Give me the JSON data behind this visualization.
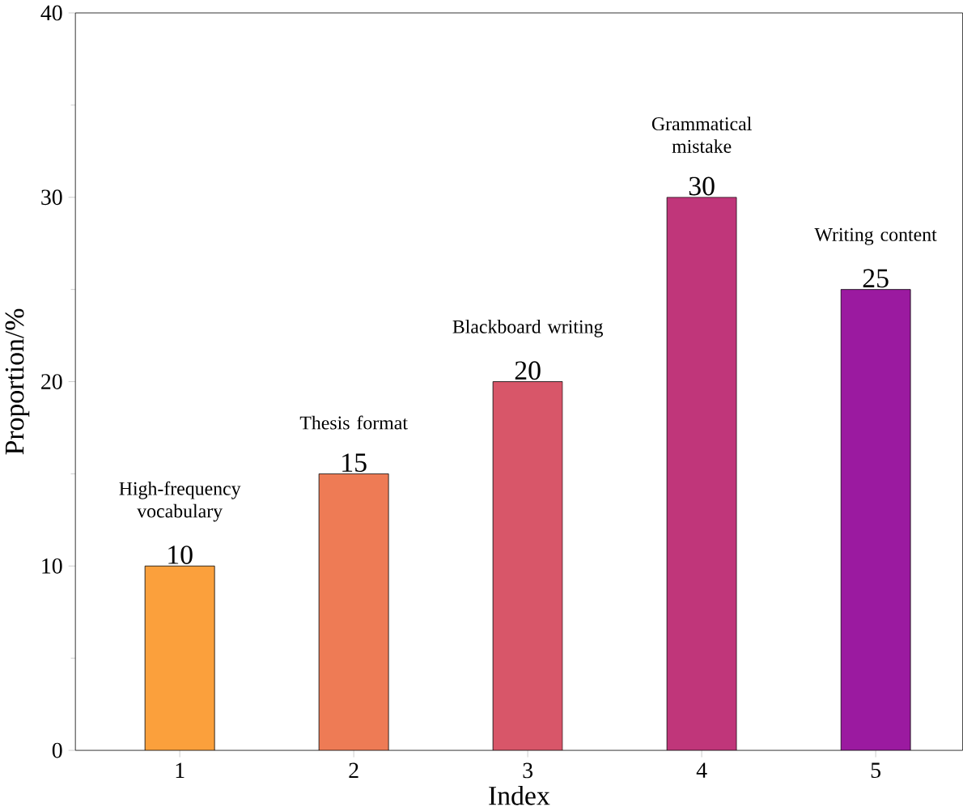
{
  "chart_data": {
    "type": "bar",
    "xlabel": "Index",
    "ylabel": "Proportion/%",
    "x": [
      1,
      2,
      3,
      4,
      5
    ],
    "values": [
      10,
      15,
      20,
      30,
      25
    ],
    "colors": [
      "#fba03c",
      "#ee7b55",
      "#d85669",
      "#c0367a",
      "#9b1aa0"
    ],
    "xlim": [
      0.4,
      5.5
    ],
    "xticks": [
      1,
      2,
      3,
      4,
      5
    ],
    "ylim": [
      0,
      40
    ],
    "yticks": [
      0,
      10,
      20,
      30,
      40
    ],
    "data_labels": true,
    "annotations": [
      "High-frequency vocabulary",
      "Thesis format",
      "Blackboard writing",
      "Grammatical mistake",
      "Writing content"
    ]
  }
}
